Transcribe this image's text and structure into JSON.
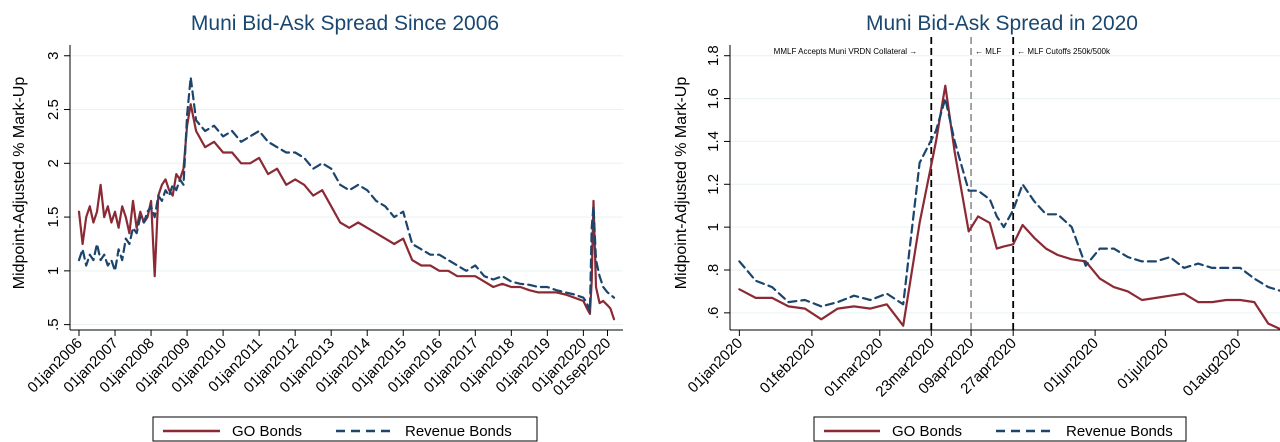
{
  "chart_data": [
    {
      "type": "line",
      "title": "Muni Bid-Ask Spread Since 2006",
      "ylabel": "Midpoint-Adjusted % Mark-Up",
      "xlabel": "",
      "ylim": [
        0.45,
        3.1
      ],
      "yticks": [
        {
          "value": 0.5,
          "label": ".5"
        },
        {
          "value": 1.0,
          "label": "1"
        },
        {
          "value": 1.5,
          "label": "1.5"
        },
        {
          "value": 2.0,
          "label": "2"
        },
        {
          "value": 2.5,
          "label": "2.5"
        },
        {
          "value": 3.0,
          "label": "3"
        }
      ],
      "xlim": [
        2005.75,
        2021.1
      ],
      "xticks": [
        {
          "value": 2006.0,
          "label": "01jan2006"
        },
        {
          "value": 2007.0,
          "label": "01jan2007"
        },
        {
          "value": 2008.0,
          "label": "01jan2008"
        },
        {
          "value": 2009.0,
          "label": "01jan2009"
        },
        {
          "value": 2010.0,
          "label": "01jan2010"
        },
        {
          "value": 2011.0,
          "label": "01jan2011"
        },
        {
          "value": 2012.0,
          "label": "01jan2012"
        },
        {
          "value": 2013.0,
          "label": "01jan2013"
        },
        {
          "value": 2014.0,
          "label": "01jan2014"
        },
        {
          "value": 2015.0,
          "label": "01jan2015"
        },
        {
          "value": 2016.0,
          "label": "01jan2016"
        },
        {
          "value": 2017.0,
          "label": "01jan2017"
        },
        {
          "value": 2018.0,
          "label": "01jan2018"
        },
        {
          "value": 2019.0,
          "label": "01jan2019"
        },
        {
          "value": 2020.0,
          "label": "01jan2020"
        },
        {
          "value": 2020.67,
          "label": "01sep2020"
        }
      ],
      "grid": true,
      "legend": "bottom",
      "vlines": [],
      "series": [
        {
          "name": "GO Bonds",
          "color": "#8b2a35",
          "dash": "solid",
          "x": [
            2006.0,
            2006.1,
            2006.2,
            2006.3,
            2006.4,
            2006.5,
            2006.6,
            2006.7,
            2006.8,
            2006.9,
            2007.0,
            2007.1,
            2007.2,
            2007.3,
            2007.4,
            2007.5,
            2007.6,
            2007.7,
            2007.8,
            2007.9,
            2008.0,
            2008.1,
            2008.2,
            2008.3,
            2008.4,
            2008.5,
            2008.6,
            2008.7,
            2008.8,
            2008.9,
            2009.0,
            2009.1,
            2009.25,
            2009.5,
            2009.75,
            2010.0,
            2010.25,
            2010.5,
            2010.75,
            2011.0,
            2011.25,
            2011.5,
            2011.75,
            2012.0,
            2012.25,
            2012.5,
            2012.75,
            2013.0,
            2013.25,
            2013.5,
            2013.75,
            2014.0,
            2014.25,
            2014.5,
            2014.75,
            2015.0,
            2015.25,
            2015.5,
            2015.75,
            2016.0,
            2016.25,
            2016.5,
            2016.75,
            2017.0,
            2017.25,
            2017.5,
            2017.75,
            2018.0,
            2018.25,
            2018.5,
            2018.75,
            2019.0,
            2019.25,
            2019.5,
            2019.75,
            2020.0,
            2020.1,
            2020.18,
            2020.23,
            2020.28,
            2020.35,
            2020.45,
            2020.55,
            2020.67,
            2020.75,
            2020.85
          ],
          "y": [
            1.55,
            1.25,
            1.5,
            1.6,
            1.45,
            1.55,
            1.8,
            1.5,
            1.6,
            1.45,
            1.55,
            1.4,
            1.6,
            1.5,
            1.35,
            1.65,
            1.4,
            1.55,
            1.45,
            1.5,
            1.65,
            0.95,
            1.7,
            1.8,
            1.85,
            1.75,
            1.7,
            1.9,
            1.85,
            1.95,
            2.35,
            2.55,
            2.3,
            2.15,
            2.2,
            2.1,
            2.1,
            2.0,
            2.0,
            2.05,
            1.9,
            1.95,
            1.8,
            1.85,
            1.8,
            1.7,
            1.75,
            1.6,
            1.45,
            1.4,
            1.45,
            1.4,
            1.35,
            1.3,
            1.25,
            1.3,
            1.1,
            1.05,
            1.05,
            1.0,
            1.0,
            0.95,
            0.95,
            0.95,
            0.9,
            0.85,
            0.88,
            0.85,
            0.85,
            0.82,
            0.8,
            0.8,
            0.8,
            0.78,
            0.75,
            0.72,
            0.65,
            0.6,
            0.9,
            1.65,
            0.85,
            0.7,
            0.72,
            0.68,
            0.65,
            0.55
          ]
        },
        {
          "name": "Revenue Bonds",
          "color": "#1b456d",
          "dash": "dashed",
          "x": [
            2006.0,
            2006.1,
            2006.2,
            2006.3,
            2006.4,
            2006.5,
            2006.6,
            2006.7,
            2006.8,
            2006.9,
            2007.0,
            2007.1,
            2007.2,
            2007.3,
            2007.4,
            2007.5,
            2007.6,
            2007.7,
            2007.8,
            2007.9,
            2008.0,
            2008.1,
            2008.2,
            2008.3,
            2008.4,
            2008.5,
            2008.6,
            2008.7,
            2008.8,
            2008.9,
            2009.0,
            2009.1,
            2009.25,
            2009.5,
            2009.75,
            2010.0,
            2010.25,
            2010.5,
            2010.75,
            2011.0,
            2011.25,
            2011.5,
            2011.75,
            2012.0,
            2012.25,
            2012.5,
            2012.75,
            2013.0,
            2013.25,
            2013.5,
            2013.75,
            2014.0,
            2014.25,
            2014.5,
            2014.75,
            2015.0,
            2015.25,
            2015.5,
            2015.75,
            2016.0,
            2016.25,
            2016.5,
            2016.75,
            2017.0,
            2017.25,
            2017.5,
            2017.75,
            2018.0,
            2018.25,
            2018.5,
            2018.75,
            2019.0,
            2019.25,
            2019.5,
            2019.75,
            2020.0,
            2020.1,
            2020.18,
            2020.23,
            2020.28,
            2020.35,
            2020.45,
            2020.55,
            2020.67,
            2020.75,
            2020.85
          ],
          "y": [
            1.1,
            1.2,
            1.05,
            1.15,
            1.1,
            1.25,
            1.1,
            1.15,
            1.05,
            1.1,
            1.0,
            1.2,
            1.1,
            1.3,
            1.25,
            1.4,
            1.35,
            1.5,
            1.45,
            1.55,
            1.6,
            1.5,
            1.7,
            1.65,
            1.75,
            1.7,
            1.8,
            1.75,
            1.85,
            1.8,
            2.45,
            2.8,
            2.4,
            2.3,
            2.35,
            2.25,
            2.3,
            2.2,
            2.25,
            2.3,
            2.2,
            2.15,
            2.1,
            2.1,
            2.05,
            1.95,
            2.0,
            1.95,
            1.8,
            1.75,
            1.8,
            1.75,
            1.65,
            1.6,
            1.5,
            1.55,
            1.25,
            1.2,
            1.15,
            1.15,
            1.1,
            1.05,
            1.0,
            1.05,
            0.95,
            0.92,
            0.95,
            0.9,
            0.88,
            0.87,
            0.85,
            0.85,
            0.82,
            0.8,
            0.78,
            0.75,
            0.7,
            0.62,
            1.4,
            1.6,
            1.1,
            0.95,
            0.85,
            0.8,
            0.78,
            0.75
          ]
        }
      ]
    },
    {
      "type": "line",
      "title": "Muni Bid-Ask Spread in 2020",
      "ylabel": "Midpoint-Adjusted % Mark-Up",
      "xlabel": "",
      "ylim": [
        0.52,
        1.85
      ],
      "yticks": [
        {
          "value": 0.6,
          "label": ".6"
        },
        {
          "value": 0.8,
          "label": ".8"
        },
        {
          "value": 1.0,
          "label": "1"
        },
        {
          "value": 1.2,
          "label": "1.2"
        },
        {
          "value": 1.4,
          "label": "1.4"
        },
        {
          "value": 1.6,
          "label": "1.6"
        },
        {
          "value": 1.8,
          "label": "1.8"
        }
      ],
      "xlim": [
        -4,
        231
      ],
      "xticks": [
        {
          "value": 0,
          "label": "01jan2020"
        },
        {
          "value": 31,
          "label": "01feb2020"
        },
        {
          "value": 60,
          "label": "01mar2020"
        },
        {
          "value": 82,
          "label": "23mar2020"
        },
        {
          "value": 99,
          "label": "09apr2020"
        },
        {
          "value": 117,
          "label": "27apr2020"
        },
        {
          "value": 152,
          "label": "01jun2020"
        },
        {
          "value": 182,
          "label": "01jul2020"
        },
        {
          "value": 213,
          "label": "01aug2020"
        }
      ],
      "grid": true,
      "legend": "bottom",
      "vlines": [
        {
          "x": 82,
          "style": "black-dashed",
          "label": "MMLF Accepts Muni VRDN Collateral →",
          "label_side": "left"
        },
        {
          "x": 99,
          "style": "gray-dashed",
          "label": "← MLF",
          "label_side": "right"
        },
        {
          "x": 117,
          "style": "black-dashed",
          "label": "← MLF Cutoffs 250k/500k",
          "label_side": "right"
        }
      ],
      "series": [
        {
          "name": "GO Bonds",
          "color": "#8b2a35",
          "dash": "solid",
          "x": [
            0,
            7,
            14,
            21,
            28,
            35,
            42,
            49,
            56,
            63,
            70,
            77,
            84,
            88,
            92,
            98,
            102,
            107,
            110,
            113,
            117,
            121,
            126,
            131,
            136,
            142,
            148,
            154,
            160,
            166,
            172,
            178,
            184,
            190,
            196,
            202,
            208,
            214,
            220,
            226,
            232
          ],
          "y": [
            0.71,
            0.67,
            0.67,
            0.63,
            0.62,
            0.57,
            0.62,
            0.63,
            0.62,
            0.64,
            0.54,
            1.02,
            1.4,
            1.66,
            1.35,
            0.98,
            1.05,
            1.02,
            0.9,
            0.91,
            0.92,
            1.01,
            0.95,
            0.9,
            0.87,
            0.85,
            0.84,
            0.76,
            0.72,
            0.7,
            0.66,
            0.67,
            0.68,
            0.69,
            0.65,
            0.65,
            0.66,
            0.66,
            0.65,
            0.55,
            0.52
          ]
        },
        {
          "name": "Revenue Bonds",
          "color": "#1b456d",
          "dash": "dashed",
          "x": [
            0,
            7,
            14,
            21,
            28,
            35,
            42,
            49,
            56,
            63,
            70,
            77,
            84,
            88,
            92,
            98,
            102,
            107,
            110,
            113,
            117,
            121,
            126,
            131,
            136,
            142,
            148,
            154,
            160,
            166,
            172,
            178,
            184,
            190,
            196,
            202,
            208,
            214,
            220,
            226,
            232
          ],
          "y": [
            0.84,
            0.75,
            0.72,
            0.65,
            0.66,
            0.63,
            0.65,
            0.68,
            0.66,
            0.69,
            0.64,
            1.3,
            1.45,
            1.6,
            1.4,
            1.17,
            1.17,
            1.13,
            1.05,
            1.0,
            1.08,
            1.2,
            1.12,
            1.06,
            1.06,
            1.0,
            0.82,
            0.9,
            0.9,
            0.86,
            0.84,
            0.84,
            0.86,
            0.81,
            0.83,
            0.81,
            0.81,
            0.81,
            0.76,
            0.72,
            0.7
          ]
        }
      ]
    }
  ]
}
